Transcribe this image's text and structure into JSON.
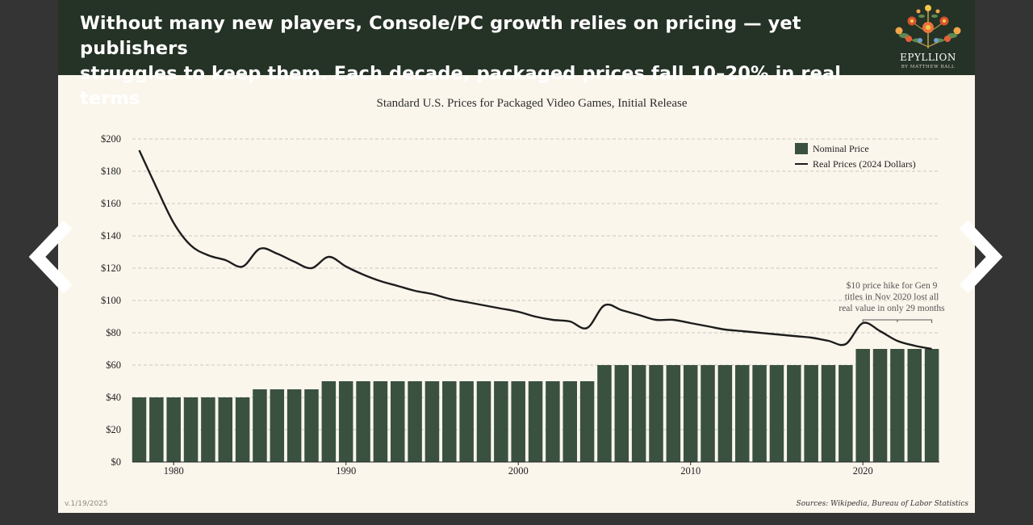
{
  "header": {
    "title_line1": "Without many new players, Console/PC growth relies on pricing — yet publishers",
    "title_line2": "struggles to keep them. Each decade, packaged prices fall 10–20% in real terms",
    "logo_name": "EPYLLION",
    "logo_byline": "BY MATTHEW BALL"
  },
  "footer": {
    "version": "v.1/19/2025",
    "sources": "Sources: Wikipedia, Bureau of Labor Statistics"
  },
  "nav": {
    "prev_icon": "chevron-left-icon",
    "next_icon": "chevron-right-icon"
  },
  "colors": {
    "bar": "#3a5140",
    "line": "#1d1d1d",
    "header_bg": "#253226",
    "slide_bg": "#fbf6ec"
  },
  "chart_data": {
    "type": "bar",
    "title": "Standard U.S. Prices for Packaged Video Games, Initial Release",
    "xlabel": "",
    "ylabel": "",
    "ylim": [
      0,
      200
    ],
    "yticks": [
      0,
      20,
      40,
      60,
      80,
      100,
      120,
      140,
      160,
      180,
      200
    ],
    "ytick_labels": [
      "$0",
      "$20",
      "$40",
      "$60",
      "$80",
      "$100",
      "$120",
      "$140",
      "$160",
      "$180",
      "$200"
    ],
    "xticks": [
      1980,
      1990,
      2000,
      2010,
      2020
    ],
    "xtick_labels": [
      "1980",
      "1990",
      "2000",
      "2010",
      "2020"
    ],
    "grid": true,
    "legend_position": "top-right",
    "categories": [
      1978,
      1979,
      1980,
      1981,
      1982,
      1983,
      1984,
      1985,
      1986,
      1987,
      1988,
      1989,
      1990,
      1991,
      1992,
      1993,
      1994,
      1995,
      1996,
      1997,
      1998,
      1999,
      2000,
      2001,
      2002,
      2003,
      2004,
      2005,
      2006,
      2007,
      2008,
      2009,
      2010,
      2011,
      2012,
      2013,
      2014,
      2015,
      2016,
      2017,
      2018,
      2019,
      2020,
      2021,
      2022,
      2023,
      2024
    ],
    "series": [
      {
        "name": "Nominal Price",
        "type": "bar",
        "values": [
          40,
          40,
          40,
          40,
          40,
          40,
          40,
          45,
          45,
          45,
          45,
          50,
          50,
          50,
          50,
          50,
          50,
          50,
          50,
          50,
          50,
          50,
          50,
          50,
          50,
          50,
          50,
          60,
          60,
          60,
          60,
          60,
          60,
          60,
          60,
          60,
          60,
          60,
          60,
          60,
          60,
          60,
          70,
          70,
          70,
          70,
          70
        ]
      },
      {
        "name": "Real Prices (2024 Dollars)",
        "type": "line",
        "values": [
          193,
          170,
          148,
          134,
          128,
          125,
          121,
          132,
          129,
          124,
          120,
          127,
          121,
          116,
          112,
          109,
          106,
          104,
          101,
          99,
          97,
          95,
          93,
          90,
          88,
          87,
          83,
          97,
          94,
          91,
          88,
          88,
          86,
          84,
          82,
          81,
          80,
          79,
          78,
          77,
          75,
          73,
          86,
          81,
          75,
          72,
          70
        ]
      }
    ],
    "annotations": [
      {
        "lines": [
          "$10 price hike for Gen 9",
          "titles in Nov 2020 lost all",
          "real value in only 29 months"
        ],
        "x_range": [
          2020,
          2024
        ],
        "y": 88
      }
    ]
  }
}
